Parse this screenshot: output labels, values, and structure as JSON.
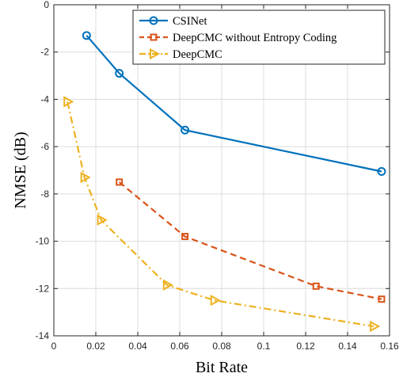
{
  "chart_data": {
    "type": "line",
    "xlabel": "Bit Rate",
    "ylabel": "NMSE (dB)",
    "xlim": [
      0,
      0.16
    ],
    "ylim": [
      -14,
      0
    ],
    "x_ticks": [
      "0",
      "0.02",
      "0.04",
      "0.06",
      "0.08",
      "0.1",
      "0.12",
      "0.14",
      "0.16"
    ],
    "y_ticks": [
      "0",
      "-2",
      "-4",
      "-6",
      "-8",
      "-10",
      "-12",
      "-14"
    ],
    "grid": true,
    "legend_position": "top-right",
    "series": [
      {
        "name": "CSINet",
        "color": "#0072BD",
        "line_style": "solid",
        "marker": "circle",
        "x": [
          0.0156,
          0.0312,
          0.0625,
          0.1562
        ],
        "y": [
          -1.3,
          -2.9,
          -5.3,
          -7.05
        ]
      },
      {
        "name": "DeepCMC without Entropy Coding",
        "color": "#D95319",
        "line_style": "dashed",
        "marker": "square",
        "x": [
          0.0312,
          0.0625,
          0.125,
          0.1562
        ],
        "y": [
          -7.5,
          -9.8,
          -11.9,
          -12.45
        ]
      },
      {
        "name": "DeepCMC",
        "color": "#EDB120",
        "line_style": "dashdot",
        "marker": "triangle-right",
        "x": [
          0.0065,
          0.0146,
          0.0225,
          0.0539,
          0.0765,
          0.1525
        ],
        "y": [
          -4.1,
          -7.3,
          -9.1,
          -11.85,
          -12.5,
          -13.6
        ]
      }
    ]
  }
}
